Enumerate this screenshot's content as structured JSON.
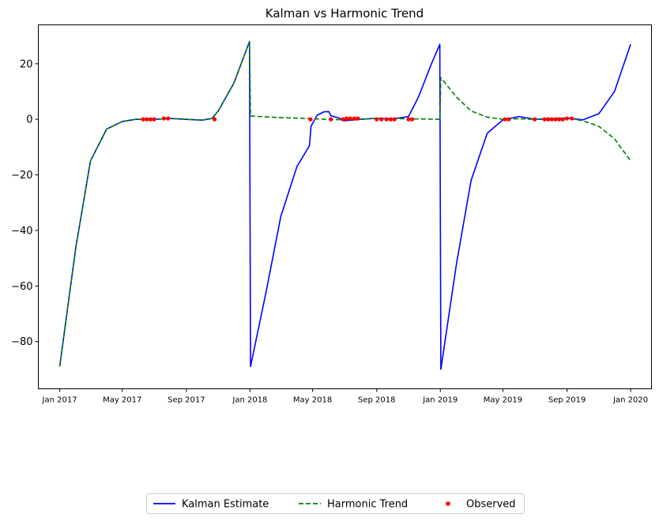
{
  "chart_data": {
    "type": "line",
    "title": "Kalman vs Harmonic Trend",
    "xlabel": "",
    "ylabel": "",
    "x_range": [
      "2016-11-21",
      "2020-02-10"
    ],
    "ylim": [
      -97,
      34
    ],
    "y_ticks": [
      -80,
      -60,
      -40,
      -20,
      0,
      20
    ],
    "x_ticks": [
      {
        "date": "2017-01-01",
        "label": "Jan 2017"
      },
      {
        "date": "2017-05-01",
        "label": "May 2017"
      },
      {
        "date": "2017-09-01",
        "label": "Sep 2017"
      },
      {
        "date": "2018-01-01",
        "label": "Jan 2018"
      },
      {
        "date": "2018-05-01",
        "label": "May 2018"
      },
      {
        "date": "2018-09-01",
        "label": "Sep 2018"
      },
      {
        "date": "2019-01-01",
        "label": "Jan 2019"
      },
      {
        "date": "2019-05-01",
        "label": "May 2019"
      },
      {
        "date": "2019-09-01",
        "label": "Sep 2019"
      },
      {
        "date": "2020-01-01",
        "label": "Jan 2020"
      }
    ],
    "grid": false,
    "legend_position": "bottom-center",
    "series": [
      {
        "name": "Kalman Estimate",
        "style": "solid",
        "color": "#0000ff",
        "points": [
          [
            "2017-01-01",
            -89
          ],
          [
            "2017-02-01",
            -46
          ],
          [
            "2017-03-01",
            -15
          ],
          [
            "2017-04-01",
            -3.5
          ],
          [
            "2017-05-01",
            -0.8
          ],
          [
            "2017-05-26",
            0
          ],
          [
            "2017-07-01",
            0
          ],
          [
            "2017-08-01",
            0.3
          ],
          [
            "2017-09-01",
            0
          ],
          [
            "2017-10-01",
            -0.3
          ],
          [
            "2017-10-20",
            0.3
          ],
          [
            "2017-11-01",
            3
          ],
          [
            "2017-12-01",
            13
          ],
          [
            "2017-12-31",
            28
          ],
          [
            "2018-01-02",
            -89
          ],
          [
            "2018-02-01",
            -62
          ],
          [
            "2018-03-01",
            -35
          ],
          [
            "2018-04-01",
            -17
          ],
          [
            "2018-04-25",
            -9.5
          ],
          [
            "2018-04-28",
            -2.5
          ],
          [
            "2018-05-10",
            1.5
          ],
          [
            "2018-05-23",
            2.7
          ],
          [
            "2018-06-01",
            2.8
          ],
          [
            "2018-06-05",
            1.3
          ],
          [
            "2018-06-20",
            0.5
          ],
          [
            "2018-07-01",
            -0.5
          ],
          [
            "2018-08-01",
            0
          ],
          [
            "2018-09-01",
            0.4
          ],
          [
            "2018-10-01",
            0.1
          ],
          [
            "2018-11-01",
            1
          ],
          [
            "2018-11-20",
            8
          ],
          [
            "2018-12-15",
            20
          ],
          [
            "2018-12-31",
            27
          ],
          [
            "2019-01-02",
            -90
          ],
          [
            "2019-02-01",
            -52
          ],
          [
            "2019-03-01",
            -22
          ],
          [
            "2019-04-01",
            -5
          ],
          [
            "2019-05-01",
            -0.2
          ],
          [
            "2019-06-01",
            1
          ],
          [
            "2019-07-01",
            0
          ],
          [
            "2019-08-01",
            0.2
          ],
          [
            "2019-09-01",
            0.5
          ],
          [
            "2019-10-01",
            -0.2
          ],
          [
            "2019-11-01",
            2
          ],
          [
            "2019-12-01",
            10
          ],
          [
            "2020-01-01",
            27
          ]
        ]
      },
      {
        "name": "Harmonic Trend",
        "style": "dashed",
        "color": "#008000",
        "points": [
          [
            "2017-01-01",
            -89
          ],
          [
            "2017-02-01",
            -46
          ],
          [
            "2017-03-01",
            -15
          ],
          [
            "2017-04-01",
            -3.5
          ],
          [
            "2017-05-01",
            -0.8
          ],
          [
            "2017-05-26",
            0
          ],
          [
            "2017-07-01",
            0
          ],
          [
            "2017-08-01",
            0.3
          ],
          [
            "2017-09-01",
            0
          ],
          [
            "2017-10-01",
            -0.3
          ],
          [
            "2017-10-20",
            0.3
          ],
          [
            "2017-11-01",
            3
          ],
          [
            "2017-12-01",
            13
          ],
          [
            "2017-12-31",
            28
          ],
          [
            "2018-01-02",
            1.2
          ],
          [
            "2018-03-01",
            0.6
          ],
          [
            "2018-05-01",
            0.2
          ],
          [
            "2018-07-01",
            -0.2
          ],
          [
            "2018-09-01",
            0.3
          ],
          [
            "2018-11-01",
            0.2
          ],
          [
            "2018-12-31",
            0
          ],
          [
            "2019-01-02",
            15
          ],
          [
            "2019-02-01",
            8
          ],
          [
            "2019-03-01",
            3
          ],
          [
            "2019-04-01",
            0.8
          ],
          [
            "2019-05-01",
            0
          ],
          [
            "2019-06-01",
            0.2
          ],
          [
            "2019-07-01",
            0
          ],
          [
            "2019-08-01",
            0
          ],
          [
            "2019-09-01",
            0.5
          ],
          [
            "2019-10-01",
            -0.5
          ],
          [
            "2019-11-01",
            -2.5
          ],
          [
            "2019-12-01",
            -7
          ],
          [
            "2020-01-01",
            -15
          ]
        ]
      }
    ],
    "observed": {
      "name": "Observed",
      "color": "#ff0000",
      "points": [
        [
          "2017-06-10",
          0
        ],
        [
          "2017-06-17",
          0
        ],
        [
          "2017-06-24",
          0
        ],
        [
          "2017-07-01",
          0
        ],
        [
          "2017-07-20",
          0.3
        ],
        [
          "2017-07-28",
          0.3
        ],
        [
          "2017-10-25",
          0
        ],
        [
          "2018-04-27",
          0
        ],
        [
          "2018-06-05",
          0
        ],
        [
          "2018-06-28",
          0
        ],
        [
          "2018-07-05",
          0.3
        ],
        [
          "2018-07-12",
          0.3
        ],
        [
          "2018-07-20",
          0.3
        ],
        [
          "2018-07-27",
          0.3
        ],
        [
          "2018-09-01",
          0
        ],
        [
          "2018-09-10",
          0
        ],
        [
          "2018-09-20",
          0
        ],
        [
          "2018-09-28",
          0
        ],
        [
          "2018-10-05",
          0
        ],
        [
          "2018-11-01",
          0
        ],
        [
          "2018-11-08",
          0
        ],
        [
          "2019-05-05",
          0
        ],
        [
          "2019-05-12",
          0
        ],
        [
          "2019-07-01",
          0
        ],
        [
          "2019-07-20",
          0
        ],
        [
          "2019-07-27",
          0
        ],
        [
          "2019-08-03",
          0
        ],
        [
          "2019-08-10",
          0
        ],
        [
          "2019-08-17",
          0
        ],
        [
          "2019-08-24",
          0
        ],
        [
          "2019-09-01",
          0.3
        ],
        [
          "2019-09-10",
          0.3
        ]
      ]
    }
  }
}
